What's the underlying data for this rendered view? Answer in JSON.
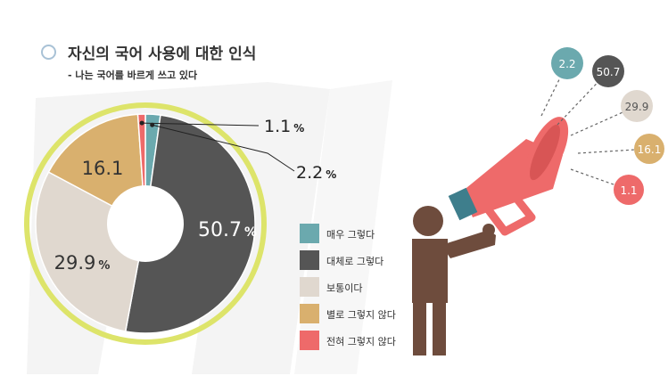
{
  "title": "자신의 국어 사용에 대한 인식",
  "subtitle": "- 나는 국어를 바르게 쓰고 있다",
  "colors": {
    "very_much": "#6ba9ae",
    "generally": "#555555",
    "normal": "#e0d8cf",
    "not_really": "#d9b06e",
    "not_at_all": "#ee6a6a",
    "outer_ring": "#dde46a"
  },
  "chart_data": {
    "type": "pie",
    "title": "자신의 국어 사용에 대한 인식",
    "subtitle": "- 나는 국어를 바르게 쓰고 있다",
    "unit": "%",
    "slices": [
      {
        "label": "매우 그렇다",
        "value": 2.2,
        "display": "2.2",
        "color": "#6ba9ae"
      },
      {
        "label": "대체로 그렇다",
        "value": 50.7,
        "display": "50.7",
        "color": "#555555"
      },
      {
        "label": "보통이다",
        "value": 29.9,
        "display": "29.9",
        "color": "#e0d8cf"
      },
      {
        "label": "별로 그렇지 않다",
        "value": 16.1,
        "display": "16.1",
        "color": "#d9b06e"
      },
      {
        "label": "전혀 그렇지 않다",
        "value": 1.1,
        "display": "1.1",
        "color": "#ee6a6a"
      }
    ],
    "legend_position": "right"
  }
}
